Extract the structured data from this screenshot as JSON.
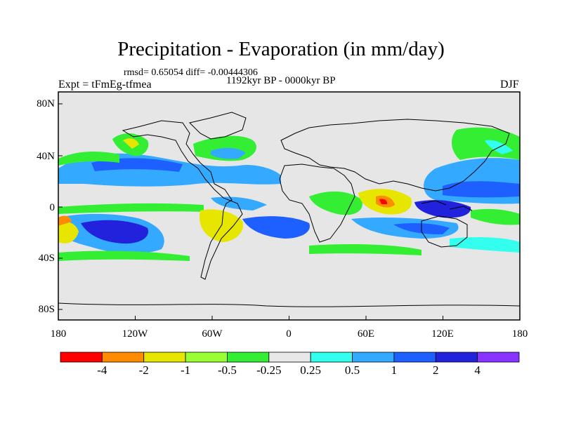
{
  "title": "Precipitation - Evaporation (in mm/day)",
  "stats": "rmsd= 0.65054 diff= -0.00444306",
  "period": "1192kyr BP - 0000kyr BP",
  "experiment": "Expt = tFmEg-tfmea",
  "season": "DJF",
  "lat_labels": [
    "80N",
    "40N",
    "0",
    "40S",
    "80S"
  ],
  "lon_labels": [
    "180",
    "120W",
    "60W",
    "0",
    "60E",
    "120E",
    "180"
  ],
  "colorbar": {
    "labels": [
      "-4",
      "-2",
      "-1",
      "-0.5",
      "-0.25",
      "0.25",
      "0.5",
      "1",
      "2",
      "4"
    ],
    "colors": [
      "#ff0000",
      "#ff8c00",
      "#e6e600",
      "#99ff33",
      "#33ee33",
      "#e8e8e8",
      "#33ffee",
      "#33aaff",
      "#1e5fff",
      "#2222dd",
      "#8833ff"
    ]
  },
  "palette": {
    "ocean_bg": "#e6e6e6",
    "coast": "#000000"
  }
}
